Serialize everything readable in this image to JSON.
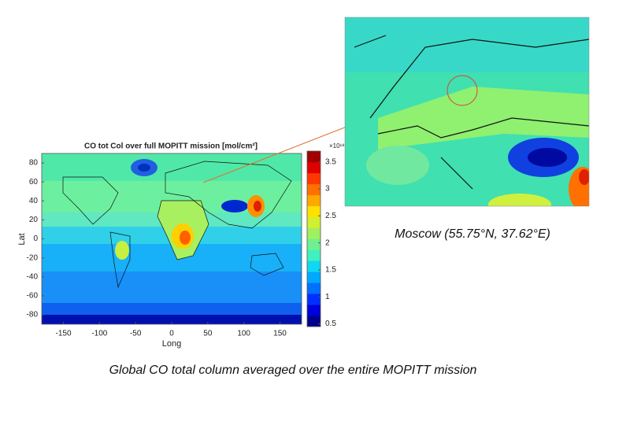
{
  "chart_data": {
    "type": "map",
    "title": "CO tot Col over full MOPITT mission [mol/cm²]",
    "xlabel": "Long",
    "ylabel": "Lat",
    "xlim": [
      -180,
      180
    ],
    "xticks": [
      -150,
      -100,
      -50,
      0,
      50,
      100,
      150
    ],
    "ylim": [
      -90,
      90
    ],
    "yticks": [
      -80,
      -60,
      -40,
      -20,
      0,
      20,
      40,
      60,
      80
    ],
    "colorbar_exponent": "×10¹⁸",
    "clim": [
      0.45,
      3.7
    ],
    "cticks": [
      0.5,
      1,
      1.5,
      2,
      2.5,
      3,
      3.5
    ],
    "colormap": [
      "#00008f",
      "#0000d8",
      "#0030ff",
      "#0070ff",
      "#00a8ff",
      "#10d8f0",
      "#40f0c0",
      "#70f090",
      "#a0f060",
      "#d0f030",
      "#ffe000",
      "#ffa800",
      "#ff7000",
      "#ff3800",
      "#e00000",
      "#a00000"
    ]
  },
  "inset": {
    "caption": "Moscow (55.75°N, 37.62°E)"
  },
  "caption": "Global CO total column averaged over the entire MOPITT mission"
}
